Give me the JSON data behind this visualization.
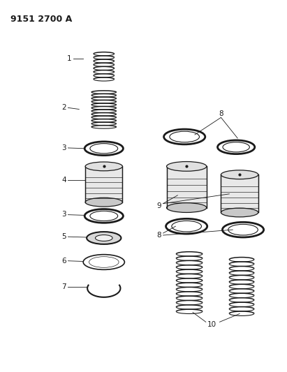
{
  "title": "9151 2700 A",
  "bg_color": "#ffffff",
  "line_color": "#1a1a1a",
  "title_fontsize": 9,
  "label_fontsize": 7.5,
  "figsize": [
    4.11,
    5.33
  ],
  "dpi": 100
}
